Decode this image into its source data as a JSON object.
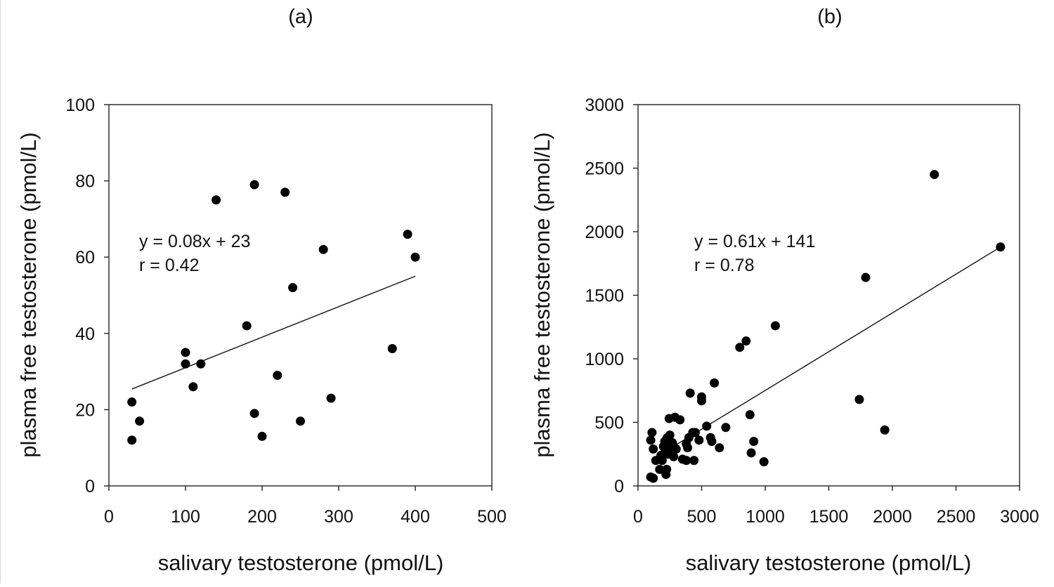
{
  "chart_data": [
    {
      "type": "scatter",
      "panel_label": "(a)",
      "xlabel": "salivary testosterone (pmol/L)",
      "ylabel": "plasma free testosterone (pmol/L)",
      "xlim": [
        0,
        500
      ],
      "ylim": [
        0,
        100
      ],
      "xticks": [
        0,
        100,
        200,
        300,
        400,
        500
      ],
      "yticks": [
        0,
        20,
        40,
        60,
        80,
        100
      ],
      "grid": false,
      "points": [
        [
          30,
          22
        ],
        [
          30,
          12
        ],
        [
          40,
          17
        ],
        [
          100,
          35
        ],
        [
          100,
          32
        ],
        [
          110,
          26
        ],
        [
          120,
          32
        ],
        [
          140,
          75
        ],
        [
          180,
          42
        ],
        [
          190,
          79
        ],
        [
          190,
          19
        ],
        [
          200,
          13
        ],
        [
          220,
          29
        ],
        [
          230,
          77
        ],
        [
          240,
          52
        ],
        [
          250,
          17
        ],
        [
          280,
          62
        ],
        [
          290,
          23
        ],
        [
          370,
          36
        ],
        [
          390,
          66
        ],
        [
          400,
          60
        ]
      ],
      "trendline": {
        "slope": 0.08,
        "intercept": 23,
        "x_range": [
          30,
          400
        ]
      },
      "annotations": [
        "y = 0.08x + 23",
        "r = 0.42"
      ]
    },
    {
      "type": "scatter",
      "panel_label": "(b)",
      "xlabel": "salivary testosterone (pmol/L)",
      "ylabel": "plasma free testosterone (pmol/L)",
      "xlim": [
        0,
        3000
      ],
      "ylim": [
        0,
        3000
      ],
      "xticks": [
        0,
        500,
        1000,
        1500,
        2000,
        2500,
        3000
      ],
      "yticks": [
        0,
        500,
        1000,
        1500,
        2000,
        2500,
        3000
      ],
      "grid": false,
      "points": [
        [
          100,
          70
        ],
        [
          120,
          60
        ],
        [
          110,
          420
        ],
        [
          100,
          360
        ],
        [
          120,
          290
        ],
        [
          140,
          200
        ],
        [
          170,
          130
        ],
        [
          180,
          240
        ],
        [
          190,
          200
        ],
        [
          200,
          310
        ],
        [
          210,
          350
        ],
        [
          215,
          280
        ],
        [
          220,
          90
        ],
        [
          225,
          130
        ],
        [
          230,
          380
        ],
        [
          235,
          250
        ],
        [
          240,
          310
        ],
        [
          245,
          530
        ],
        [
          250,
          400
        ],
        [
          260,
          300
        ],
        [
          270,
          340
        ],
        [
          280,
          230
        ],
        [
          290,
          540
        ],
        [
          300,
          290
        ],
        [
          330,
          520
        ],
        [
          350,
          210
        ],
        [
          380,
          330
        ],
        [
          380,
          200
        ],
        [
          390,
          300
        ],
        [
          400,
          380
        ],
        [
          410,
          730
        ],
        [
          430,
          420
        ],
        [
          440,
          200
        ],
        [
          450,
          420
        ],
        [
          480,
          360
        ],
        [
          500,
          700
        ],
        [
          500,
          670
        ],
        [
          540,
          470
        ],
        [
          570,
          380
        ],
        [
          580,
          350
        ],
        [
          600,
          810
        ],
        [
          640,
          300
        ],
        [
          690,
          460
        ],
        [
          800,
          1090
        ],
        [
          850,
          1140
        ],
        [
          880,
          560
        ],
        [
          890,
          260
        ],
        [
          910,
          350
        ],
        [
          990,
          190
        ],
        [
          1080,
          1260
        ],
        [
          1740,
          680
        ],
        [
          1790,
          1640
        ],
        [
          1940,
          440
        ],
        [
          2330,
          2450
        ],
        [
          2850,
          1880
        ]
      ],
      "trendline": {
        "slope": 0.61,
        "intercept": 141,
        "x_range": [
          280,
          2850
        ]
      },
      "annotations": [
        "y = 0.61x + 141",
        "r = 0.78"
      ]
    }
  ]
}
